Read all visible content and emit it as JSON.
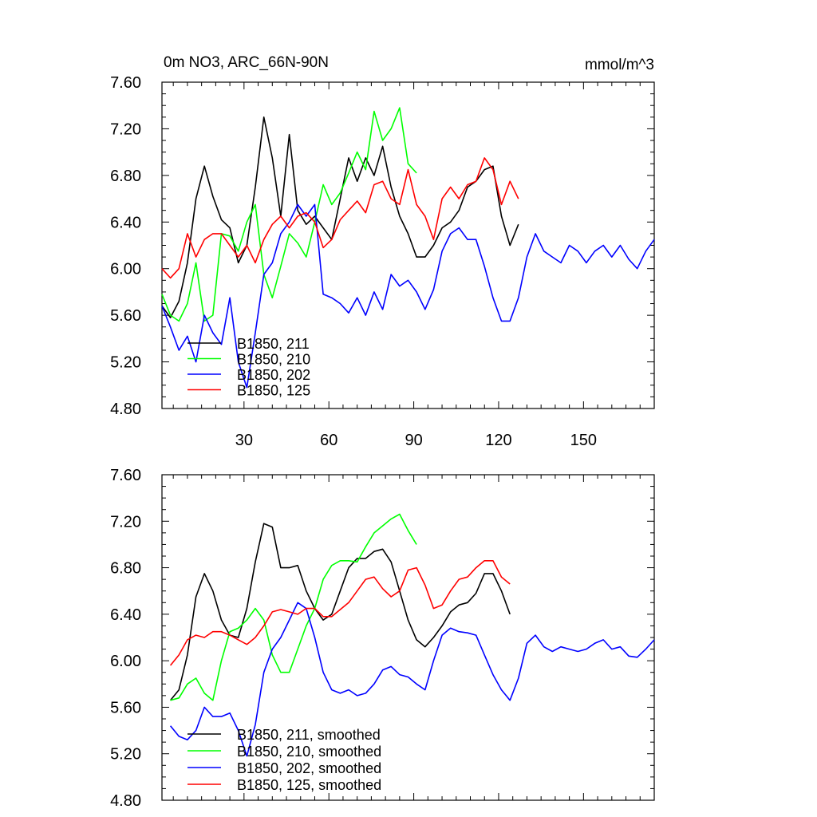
{
  "figure": {
    "title_left": "0m NO3, ARC_66N-90N",
    "title_right": "mmol/m^3"
  },
  "chart_data": [
    {
      "type": "line",
      "title": "0m NO3, ARC_66N-90N",
      "units": "mmol/m^3",
      "xlim": [
        1,
        175
      ],
      "ylim": [
        4.8,
        7.6
      ],
      "yticks": [
        4.8,
        5.2,
        5.6,
        6.0,
        6.4,
        6.8,
        7.2,
        7.6
      ],
      "ytick_labels": [
        "4.80",
        "5.20",
        "5.60",
        "6.00",
        "6.40",
        "6.80",
        "7.20",
        "7.60"
      ],
      "xticks": [
        30,
        60,
        90,
        120,
        150
      ],
      "xtick_labels": [
        "30",
        "60",
        "90",
        "120",
        "150"
      ],
      "legend_position": "bottom-left",
      "series": [
        {
          "name": "B1850, 211",
          "color": "#000000",
          "x": [
            1,
            4,
            7,
            10,
            13,
            16,
            19,
            22,
            25,
            28,
            31,
            34,
            37,
            40,
            43,
            46,
            49,
            52,
            55,
            58,
            61,
            64,
            67,
            70,
            73,
            76,
            79,
            82,
            85,
            88,
            91,
            94,
            97,
            100,
            103,
            106,
            109,
            112,
            115,
            118,
            121,
            124,
            127
          ],
          "y": [
            5.68,
            5.58,
            5.72,
            6.05,
            6.6,
            6.88,
            6.62,
            6.42,
            6.35,
            6.05,
            6.2,
            6.7,
            7.3,
            6.95,
            6.45,
            7.15,
            6.5,
            6.38,
            6.45,
            6.35,
            6.25,
            6.6,
            6.95,
            6.75,
            6.95,
            6.8,
            7.05,
            6.7,
            6.45,
            6.3,
            6.1,
            6.1,
            6.2,
            6.35,
            6.4,
            6.5,
            6.7,
            6.75,
            6.85,
            6.88,
            6.45,
            6.2,
            6.38
          ]
        },
        {
          "name": "B1850, 210",
          "color": "#00ff00",
          "x": [
            1,
            4,
            7,
            10,
            13,
            16,
            19,
            22,
            25,
            28,
            31,
            34,
            37,
            40,
            43,
            46,
            49,
            52,
            55,
            58,
            61,
            64,
            67,
            70,
            73,
            76,
            79,
            82,
            85,
            88,
            91
          ],
          "y": [
            5.78,
            5.6,
            5.55,
            5.7,
            6.05,
            5.55,
            5.6,
            6.3,
            6.28,
            6.15,
            6.4,
            6.55,
            5.95,
            5.75,
            6.02,
            6.3,
            6.22,
            6.1,
            6.4,
            6.72,
            6.55,
            6.65,
            6.82,
            7.0,
            6.85,
            7.35,
            7.1,
            7.2,
            7.38,
            6.9,
            6.82
          ]
        },
        {
          "name": "B1850, 202",
          "color": "#0000ff",
          "x": [
            1,
            4,
            7,
            10,
            13,
            16,
            19,
            22,
            25,
            28,
            31,
            34,
            37,
            40,
            43,
            46,
            49,
            52,
            55,
            58,
            61,
            64,
            67,
            70,
            73,
            76,
            79,
            82,
            85,
            88,
            91,
            94,
            97,
            100,
            103,
            106,
            109,
            112,
            115,
            118,
            121,
            124,
            127,
            130,
            133,
            136,
            139,
            142,
            145,
            148,
            151,
            154,
            157,
            160,
            163,
            166,
            169,
            172,
            175
          ],
          "y": [
            5.68,
            5.5,
            5.3,
            5.42,
            5.2,
            5.6,
            5.45,
            5.35,
            5.75,
            5.2,
            4.98,
            5.45,
            5.95,
            6.05,
            6.3,
            6.4,
            6.55,
            6.45,
            6.55,
            5.78,
            5.75,
            5.7,
            5.62,
            5.75,
            5.6,
            5.8,
            5.65,
            5.95,
            5.85,
            5.9,
            5.8,
            5.65,
            5.82,
            6.15,
            6.3,
            6.35,
            6.25,
            6.25,
            6.02,
            5.75,
            5.55,
            5.55,
            5.75,
            6.1,
            6.3,
            6.15,
            6.1,
            6.05,
            6.2,
            6.15,
            6.05,
            6.15,
            6.2,
            6.1,
            6.2,
            6.08,
            6.0,
            6.15,
            6.25
          ]
        },
        {
          "name": "B1850, 125",
          "color": "#ff0000",
          "x": [
            1,
            4,
            7,
            10,
            13,
            16,
            19,
            22,
            25,
            28,
            31,
            34,
            37,
            40,
            43,
            46,
            49,
            52,
            55,
            58,
            61,
            64,
            67,
            70,
            73,
            76,
            79,
            82,
            85,
            88,
            91,
            94,
            97,
            100,
            103,
            106,
            109,
            112,
            115,
            118,
            121,
            124,
            127
          ],
          "y": [
            6.0,
            5.92,
            6.0,
            6.3,
            6.1,
            6.25,
            6.3,
            6.3,
            6.2,
            6.1,
            6.2,
            6.05,
            6.25,
            6.38,
            6.45,
            6.35,
            6.45,
            6.48,
            6.4,
            6.18,
            6.25,
            6.42,
            6.5,
            6.58,
            6.48,
            6.72,
            6.75,
            6.6,
            6.55,
            6.85,
            6.55,
            6.45,
            6.25,
            6.6,
            6.7,
            6.6,
            6.72,
            6.75,
            6.95,
            6.85,
            6.55,
            6.75,
            6.6
          ]
        }
      ]
    },
    {
      "type": "line",
      "title": "",
      "xlim": [
        1,
        175
      ],
      "ylim": [
        4.8,
        7.6
      ],
      "yticks": [
        4.8,
        5.2,
        5.6,
        6.0,
        6.4,
        6.8,
        7.2,
        7.6
      ],
      "ytick_labels": [
        "4.80",
        "5.20",
        "5.60",
        "6.00",
        "6.40",
        "6.80",
        "7.20",
        "7.60"
      ],
      "xticks": [
        30,
        60,
        90,
        120,
        150
      ],
      "xtick_labels": [
        "",
        "",
        "",
        "",
        ""
      ],
      "legend_position": "bottom-left",
      "series": [
        {
          "name": "B1850, 211, smoothed",
          "color": "#000000",
          "x": [
            4,
            7,
            10,
            13,
            16,
            19,
            22,
            25,
            28,
            31,
            34,
            37,
            40,
            43,
            46,
            49,
            52,
            55,
            58,
            61,
            64,
            67,
            70,
            73,
            76,
            79,
            82,
            85,
            88,
            91,
            94,
            97,
            100,
            103,
            106,
            109,
            112,
            115,
            118,
            121,
            124
          ],
          "y": [
            5.66,
            5.75,
            6.05,
            6.55,
            6.75,
            6.6,
            6.35,
            6.22,
            6.2,
            6.45,
            6.85,
            7.18,
            7.15,
            6.8,
            6.8,
            6.82,
            6.6,
            6.45,
            6.35,
            6.4,
            6.6,
            6.8,
            6.88,
            6.88,
            6.94,
            6.96,
            6.85,
            6.6,
            6.35,
            6.18,
            6.12,
            6.2,
            6.3,
            6.42,
            6.48,
            6.5,
            6.58,
            6.75,
            6.75,
            6.6,
            6.4
          ]
        },
        {
          "name": "B1850, 210, smoothed",
          "color": "#00ff00",
          "x": [
            4,
            7,
            10,
            13,
            16,
            19,
            22,
            25,
            28,
            31,
            34,
            37,
            40,
            43,
            46,
            49,
            52,
            55,
            58,
            61,
            64,
            67,
            70,
            73,
            76,
            79,
            82,
            85,
            88,
            91
          ],
          "y": [
            5.66,
            5.68,
            5.8,
            5.85,
            5.72,
            5.66,
            6.0,
            6.25,
            6.28,
            6.35,
            6.45,
            6.35,
            6.05,
            5.9,
            5.9,
            6.1,
            6.3,
            6.45,
            6.7,
            6.82,
            6.86,
            6.86,
            6.85,
            6.98,
            7.1,
            7.16,
            7.22,
            7.26,
            7.12,
            7.0
          ]
        },
        {
          "name": "B1850, 202, smoothed",
          "color": "#0000ff",
          "x": [
            4,
            7,
            10,
            13,
            16,
            19,
            22,
            25,
            28,
            31,
            34,
            37,
            40,
            43,
            46,
            49,
            52,
            55,
            58,
            61,
            64,
            67,
            70,
            73,
            76,
            79,
            82,
            85,
            88,
            91,
            94,
            97,
            100,
            103,
            106,
            109,
            112,
            115,
            118,
            121,
            124,
            127,
            130,
            133,
            136,
            139,
            142,
            145,
            148,
            151,
            154,
            157,
            160,
            163,
            166,
            169,
            172,
            175
          ],
          "y": [
            5.44,
            5.35,
            5.32,
            5.4,
            5.6,
            5.52,
            5.52,
            5.55,
            5.4,
            5.18,
            5.45,
            5.9,
            6.1,
            6.2,
            6.35,
            6.5,
            6.45,
            6.2,
            5.9,
            5.75,
            5.72,
            5.75,
            5.7,
            5.72,
            5.8,
            5.92,
            5.95,
            5.88,
            5.86,
            5.8,
            5.75,
            6.0,
            6.22,
            6.28,
            6.25,
            6.24,
            6.22,
            6.05,
            5.88,
            5.75,
            5.66,
            5.85,
            6.15,
            6.22,
            6.12,
            6.08,
            6.12,
            6.1,
            6.08,
            6.1,
            6.15,
            6.18,
            6.1,
            6.12,
            6.04,
            6.03,
            6.1,
            6.18
          ]
        },
        {
          "name": "B1850, 125, smoothed",
          "color": "#ff0000",
          "x": [
            4,
            7,
            10,
            13,
            16,
            19,
            22,
            25,
            28,
            31,
            34,
            37,
            40,
            43,
            46,
            49,
            52,
            55,
            58,
            61,
            64,
            67,
            70,
            73,
            76,
            79,
            82,
            85,
            88,
            91,
            94,
            97,
            100,
            103,
            106,
            109,
            112,
            115,
            118,
            121,
            124
          ],
          "y": [
            5.96,
            6.05,
            6.18,
            6.22,
            6.2,
            6.25,
            6.25,
            6.22,
            6.18,
            6.14,
            6.2,
            6.3,
            6.42,
            6.44,
            6.42,
            6.4,
            6.45,
            6.45,
            6.38,
            6.38,
            6.44,
            6.5,
            6.6,
            6.7,
            6.72,
            6.62,
            6.55,
            6.6,
            6.78,
            6.8,
            6.65,
            6.45,
            6.48,
            6.6,
            6.7,
            6.72,
            6.8,
            6.86,
            6.86,
            6.72,
            6.66
          ]
        }
      ]
    }
  ]
}
